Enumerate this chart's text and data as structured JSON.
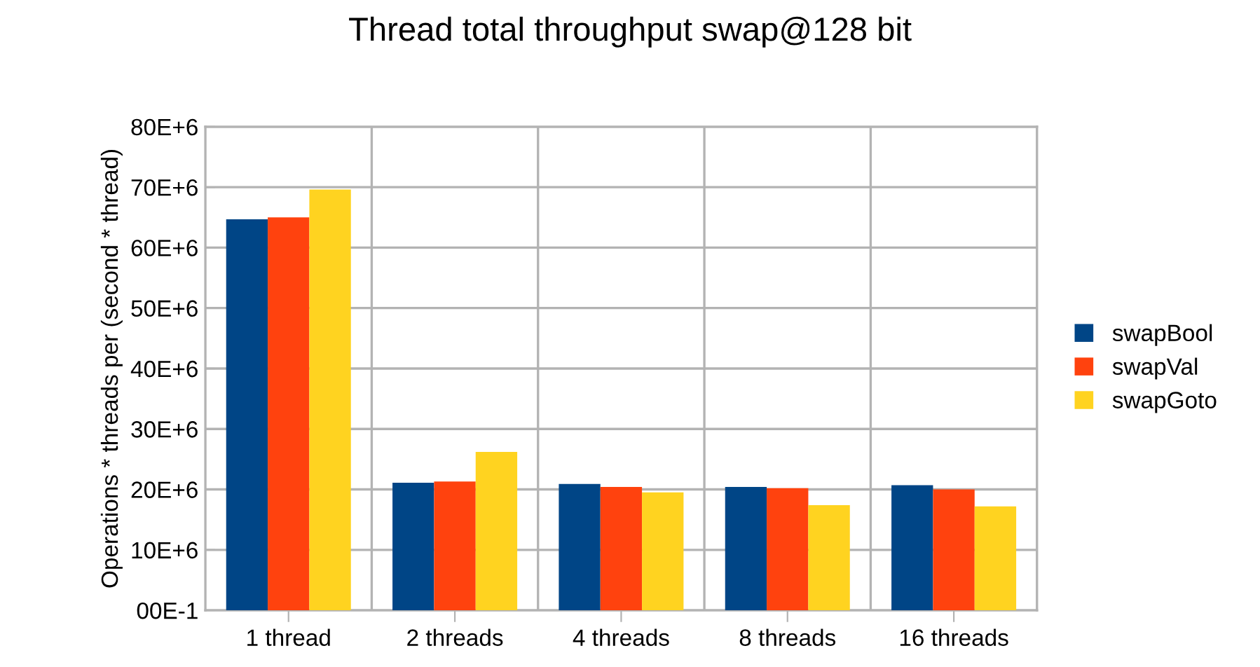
{
  "chart_data": {
    "type": "bar",
    "title": "Thread total throughput swap@128 bit",
    "ylabel": "Operations * threads per (second * thread)",
    "categories": [
      "1 thread",
      "2 threads",
      "4 threads",
      "8 threads",
      "16 threads"
    ],
    "series": [
      {
        "name": "swapBool",
        "color": "#004586",
        "values": [
          64700000,
          21100000,
          20900000,
          20400000,
          20700000
        ]
      },
      {
        "name": "swapVal",
        "color": "#ff420e",
        "values": [
          65000000,
          21300000,
          20400000,
          20200000,
          20000000
        ]
      },
      {
        "name": "swapGoto",
        "color": "#ffd320",
        "values": [
          69600000,
          26200000,
          19500000,
          17400000,
          17200000
        ]
      }
    ],
    "ylim": [
      0,
      80000000
    ],
    "yticks": [
      {
        "value": 0,
        "label": "00E-1"
      },
      {
        "value": 10000000,
        "label": "10E+6"
      },
      {
        "value": 20000000,
        "label": "20E+6"
      },
      {
        "value": 30000000,
        "label": "30E+6"
      },
      {
        "value": 40000000,
        "label": "40E+6"
      },
      {
        "value": 50000000,
        "label": "50E+6"
      },
      {
        "value": 60000000,
        "label": "60E+6"
      },
      {
        "value": 70000000,
        "label": "70E+6"
      },
      {
        "value": 80000000,
        "label": "80E+6"
      }
    ],
    "grid": true,
    "legend": "right"
  }
}
